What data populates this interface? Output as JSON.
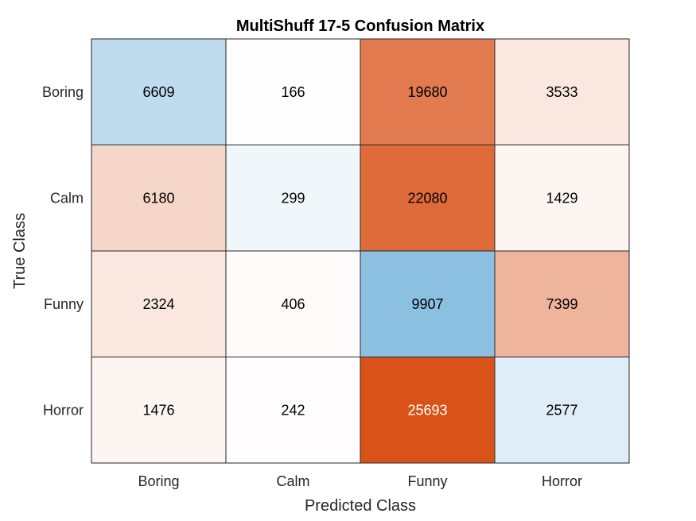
{
  "chart_data": {
    "type": "heatmap",
    "title": "MultiShuff 17-5 Confusion Matrix",
    "xlabel": "Predicted Class",
    "ylabel": "True Class",
    "x_categories": [
      "Boring",
      "Calm",
      "Funny",
      "Horror"
    ],
    "y_categories": [
      "Boring",
      "Calm",
      "Funny",
      "Horror"
    ],
    "values": [
      [
        6609,
        166,
        19680,
        3533
      ],
      [
        6180,
        299,
        22080,
        1429
      ],
      [
        2324,
        406,
        9907,
        7399
      ],
      [
        1476,
        242,
        25693,
        2577
      ]
    ],
    "colormap": {
      "diagonal_color": "#0072bd",
      "off_diagonal_color": "#d95319",
      "background": "#ffffff"
    },
    "grid": true,
    "legend": "none"
  }
}
